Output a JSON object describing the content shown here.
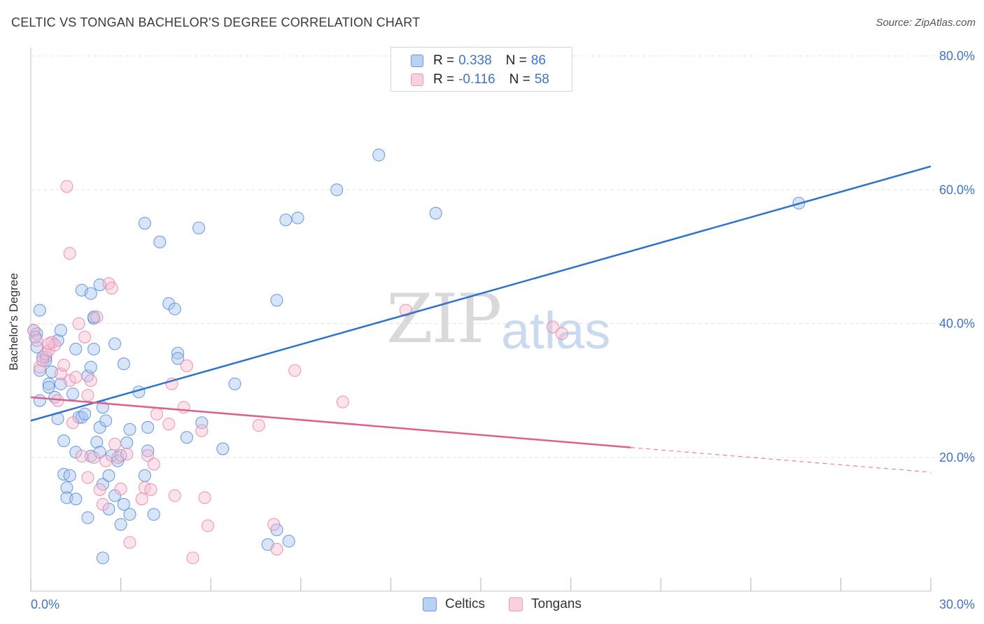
{
  "title": "CELTIC VS TONGAN BACHELOR'S DEGREE CORRELATION CHART",
  "source": "Source: ZipAtlas.com",
  "watermark": {
    "zip": "ZIP",
    "atlas": "atlas"
  },
  "legend": {
    "celtics": {
      "r_label": "R =",
      "r_value": "0.338",
      "n_label": "N =",
      "n_value": "86"
    },
    "tongans": {
      "r_label": "R =",
      "r_value": "-0.116",
      "n_label": "N =",
      "n_value": "58"
    }
  },
  "bottom_legend": {
    "celtics": "Celtics",
    "tongans": "Tongans"
  },
  "colors": {
    "celtics_fill": "#a9c6ef",
    "celtics_stroke": "#5b8fd8",
    "celtics_line": "#2f72cc",
    "tongans_fill": "#f6bfd2",
    "tongans_stroke": "#e889ab",
    "tongans_line": "#e0608d",
    "tick": "#3f74c9",
    "grid": "#e3e3e3"
  },
  "chart_data": {
    "type": "scatter",
    "title": "CELTIC VS TONGAN BACHELOR'S DEGREE CORRELATION CHART",
    "xlabel": "",
    "ylabel": "Bachelor's Degree",
    "xlim": [
      0,
      30
    ],
    "ylim": [
      0,
      82
    ],
    "x_tick_labels": [
      {
        "value": 0,
        "label": "0.0%"
      },
      {
        "value": 30,
        "label": "30.0%"
      }
    ],
    "y_tick_labels": [
      {
        "value": 20,
        "label": "20.0%"
      },
      {
        "value": 40,
        "label": "40.0%"
      },
      {
        "value": 60,
        "label": "60.0%"
      },
      {
        "value": 80,
        "label": "80.0%"
      }
    ],
    "x_minor_ticks": [
      0,
      3,
      6,
      9,
      12,
      15,
      18,
      21,
      24,
      27,
      30
    ],
    "series": [
      {
        "name": "Celtics",
        "points": [
          [
            0.1,
            39.0
          ],
          [
            0.2,
            38.5
          ],
          [
            0.2,
            36.5
          ],
          [
            0.3,
            42.0
          ],
          [
            0.3,
            33.0
          ],
          [
            0.5,
            35.0
          ],
          [
            0.5,
            34.5
          ],
          [
            0.6,
            31.0
          ],
          [
            0.6,
            30.5
          ],
          [
            0.7,
            32.8
          ],
          [
            0.8,
            29.0
          ],
          [
            0.9,
            37.5
          ],
          [
            0.9,
            25.8
          ],
          [
            1.0,
            39.0
          ],
          [
            1.1,
            22.5
          ],
          [
            1.1,
            17.5
          ],
          [
            1.2,
            15.5
          ],
          [
            1.2,
            14.0
          ],
          [
            1.3,
            17.3
          ],
          [
            1.4,
            29.5
          ],
          [
            1.5,
            20.8
          ],
          [
            1.5,
            36.2
          ],
          [
            1.5,
            13.8
          ],
          [
            1.6,
            26.0
          ],
          [
            1.7,
            45.0
          ],
          [
            1.7,
            26.0
          ],
          [
            1.8,
            26.5
          ],
          [
            1.9,
            11.0
          ],
          [
            1.9,
            32.2
          ],
          [
            2.0,
            20.2
          ],
          [
            2.0,
            33.5
          ],
          [
            2.0,
            44.5
          ],
          [
            2.1,
            36.2
          ],
          [
            2.1,
            40.8
          ],
          [
            2.1,
            41.0
          ],
          [
            2.2,
            22.3
          ],
          [
            2.3,
            45.8
          ],
          [
            2.3,
            20.8
          ],
          [
            2.3,
            24.5
          ],
          [
            2.4,
            27.5
          ],
          [
            2.4,
            16.0
          ],
          [
            2.4,
            5.0
          ],
          [
            2.5,
            25.5
          ],
          [
            2.6,
            17.3
          ],
          [
            2.6,
            12.3
          ],
          [
            2.7,
            20.3
          ],
          [
            2.8,
            14.3
          ],
          [
            2.9,
            19.5
          ],
          [
            3.0,
            20.3
          ],
          [
            3.0,
            10.0
          ],
          [
            3.1,
            13.0
          ],
          [
            3.1,
            34.0
          ],
          [
            3.2,
            22.2
          ],
          [
            3.3,
            24.2
          ],
          [
            3.3,
            11.5
          ],
          [
            3.6,
            29.8
          ],
          [
            3.8,
            17.3
          ],
          [
            3.8,
            55.0
          ],
          [
            3.9,
            24.5
          ],
          [
            3.9,
            21.0
          ],
          [
            4.1,
            11.5
          ],
          [
            4.3,
            52.2
          ],
          [
            4.6,
            43.0
          ],
          [
            4.8,
            42.2
          ],
          [
            4.9,
            35.6
          ],
          [
            4.9,
            34.8
          ],
          [
            5.2,
            23.0
          ],
          [
            5.6,
            54.3
          ],
          [
            5.7,
            25.2
          ],
          [
            6.4,
            21.3
          ],
          [
            6.8,
            31.0
          ],
          [
            7.9,
            7.0
          ],
          [
            8.2,
            43.5
          ],
          [
            8.2,
            9.2
          ],
          [
            8.5,
            55.5
          ],
          [
            8.6,
            7.5
          ],
          [
            8.9,
            55.8
          ],
          [
            10.2,
            60.0
          ],
          [
            11.6,
            65.2
          ],
          [
            13.5,
            56.5
          ],
          [
            25.6,
            58.0
          ],
          [
            0.15,
            38.0
          ],
          [
            0.4,
            35.0
          ],
          [
            1.0,
            31.0
          ],
          [
            0.3,
            28.5
          ],
          [
            2.8,
            37.0
          ]
        ]
      },
      {
        "name": "Tongans",
        "points": [
          [
            0.1,
            39.0
          ],
          [
            0.2,
            37.5
          ],
          [
            0.3,
            33.5
          ],
          [
            0.4,
            34.5
          ],
          [
            0.5,
            35.5
          ],
          [
            0.6,
            36.0
          ],
          [
            0.7,
            37.2
          ],
          [
            0.8,
            36.8
          ],
          [
            0.9,
            28.5
          ],
          [
            1.0,
            32.5
          ],
          [
            1.1,
            33.8
          ],
          [
            1.2,
            60.5
          ],
          [
            1.3,
            31.5
          ],
          [
            1.4,
            25.2
          ],
          [
            1.5,
            32.0
          ],
          [
            1.6,
            40.0
          ],
          [
            1.7,
            20.2
          ],
          [
            1.8,
            38.0
          ],
          [
            1.9,
            29.3
          ],
          [
            1.9,
            17.0
          ],
          [
            2.0,
            31.5
          ],
          [
            2.1,
            20.0
          ],
          [
            2.2,
            41.0
          ],
          [
            2.3,
            15.2
          ],
          [
            2.4,
            13.0
          ],
          [
            2.5,
            19.5
          ],
          [
            2.6,
            46.0
          ],
          [
            2.7,
            45.3
          ],
          [
            2.8,
            22.0
          ],
          [
            2.9,
            20.0
          ],
          [
            3.0,
            15.3
          ],
          [
            3.2,
            20.5
          ],
          [
            3.3,
            7.3
          ],
          [
            3.7,
            13.8
          ],
          [
            3.8,
            15.5
          ],
          [
            3.9,
            20.3
          ],
          [
            4.0,
            15.2
          ],
          [
            4.1,
            19.0
          ],
          [
            4.2,
            26.5
          ],
          [
            4.6,
            25.0
          ],
          [
            4.7,
            31.0
          ],
          [
            4.8,
            14.3
          ],
          [
            5.1,
            27.5
          ],
          [
            5.2,
            33.7
          ],
          [
            5.4,
            5.0
          ],
          [
            5.7,
            24.0
          ],
          [
            5.8,
            14.0
          ],
          [
            5.9,
            9.8
          ],
          [
            7.6,
            24.8
          ],
          [
            8.1,
            10.0
          ],
          [
            8.2,
            6.3
          ],
          [
            8.8,
            33.0
          ],
          [
            10.4,
            28.3
          ],
          [
            12.5,
            42.0
          ],
          [
            17.4,
            39.5
          ],
          [
            17.7,
            38.5
          ],
          [
            1.3,
            50.5
          ],
          [
            0.6,
            37.0
          ]
        ]
      }
    ],
    "trend_lines": [
      {
        "name": "Celtics",
        "x": [
          0,
          30
        ],
        "y": [
          25.5,
          63.5
        ]
      },
      {
        "name": "Tongans",
        "x": [
          0,
          20
        ],
        "y": [
          29.0,
          21.5
        ],
        "dashed_extension": {
          "x": [
            20,
            30
          ],
          "y": [
            21.5,
            17.8
          ]
        }
      }
    ]
  }
}
